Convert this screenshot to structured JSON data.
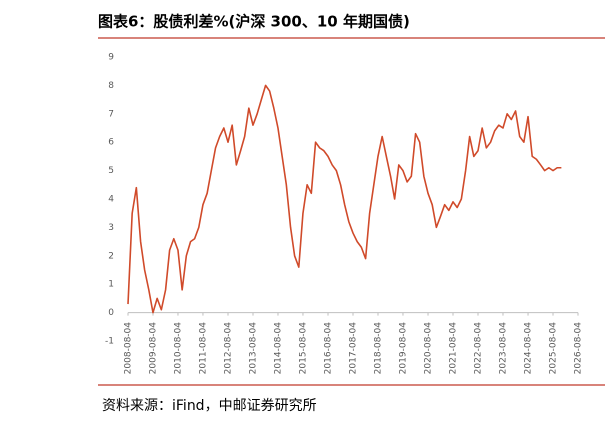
{
  "chart_data": {
    "type": "line",
    "title": "图表6：股债利差%(沪深 300、10 年期国债)",
    "source": "资料来源：iFind，中邮证券研究所",
    "x": [
      "2008-08-04",
      "2008-10-04",
      "2008-12-04",
      "2009-02-04",
      "2009-04-04",
      "2009-06-04",
      "2009-08-04",
      "2009-10-04",
      "2009-12-04",
      "2010-02-04",
      "2010-04-04",
      "2010-06-04",
      "2010-08-04",
      "2010-10-04",
      "2010-12-04",
      "2011-02-04",
      "2011-04-04",
      "2011-06-04",
      "2011-08-04",
      "2011-10-04",
      "2011-12-04",
      "2012-02-04",
      "2012-04-04",
      "2012-06-04",
      "2012-08-04",
      "2012-10-04",
      "2012-12-04",
      "2013-02-04",
      "2013-04-04",
      "2013-06-04",
      "2013-08-04",
      "2013-10-04",
      "2013-12-04",
      "2014-02-04",
      "2014-04-04",
      "2014-06-04",
      "2014-08-04",
      "2014-10-04",
      "2014-12-04",
      "2015-02-04",
      "2015-04-04",
      "2015-06-04",
      "2015-08-04",
      "2015-10-04",
      "2015-12-04",
      "2016-02-04",
      "2016-04-04",
      "2016-06-04",
      "2016-08-04",
      "2016-10-04",
      "2016-12-04",
      "2017-02-04",
      "2017-04-04",
      "2017-06-04",
      "2017-08-04",
      "2017-10-04",
      "2017-12-04",
      "2018-02-04",
      "2018-04-04",
      "2018-06-04",
      "2018-08-04",
      "2018-10-04",
      "2018-12-04",
      "2019-02-04",
      "2019-04-04",
      "2019-06-04",
      "2019-08-04",
      "2019-10-04",
      "2019-12-04",
      "2020-02-04",
      "2020-04-04",
      "2020-06-04",
      "2020-08-04",
      "2020-10-04",
      "2020-12-04",
      "2021-02-04",
      "2021-04-04",
      "2021-06-04",
      "2021-08-04",
      "2021-10-04",
      "2021-12-04",
      "2022-02-04",
      "2022-04-04",
      "2022-06-04",
      "2022-08-04",
      "2022-10-04",
      "2022-12-04",
      "2023-02-04",
      "2023-04-04",
      "2023-06-04",
      "2023-08-04",
      "2023-10-04",
      "2023-12-04",
      "2024-02-04",
      "2024-04-04",
      "2024-06-04",
      "2024-08-04",
      "2024-10-04",
      "2024-12-04",
      "2025-02-04",
      "2025-04-04",
      "2025-06-04",
      "2025-08-04",
      "2025-10-04",
      "2025-12-04"
    ],
    "series": [
      {
        "color": "#d04a2a",
        "values": [
          0.3,
          3.5,
          4.4,
          2.5,
          1.5,
          0.8,
          0.0,
          0.5,
          0.1,
          0.8,
          2.2,
          2.6,
          2.2,
          0.8,
          2.0,
          2.5,
          2.6,
          3.0,
          3.8,
          4.2,
          5.0,
          5.8,
          6.2,
          6.5,
          6.0,
          6.6,
          5.2,
          5.7,
          6.2,
          7.2,
          6.6,
          7.0,
          7.5,
          8.0,
          7.8,
          7.2,
          6.5,
          5.5,
          4.5,
          3.0,
          2.0,
          1.6,
          3.5,
          4.5,
          4.2,
          6.0,
          5.8,
          5.7,
          5.5,
          5.2,
          5.0,
          4.5,
          3.8,
          3.2,
          2.8,
          2.5,
          2.3,
          1.9,
          3.5,
          4.5,
          5.5,
          6.2,
          5.5,
          4.8,
          4.0,
          5.2,
          5.0,
          4.6,
          4.8,
          6.3,
          6.0,
          4.8,
          4.2,
          3.8,
          3.0,
          3.4,
          3.8,
          3.6,
          3.9,
          3.7,
          4.0,
          5.0,
          6.2,
          5.5,
          5.7,
          6.5,
          5.8,
          6.0,
          6.4,
          6.6,
          6.5,
          7.0,
          6.8,
          7.1,
          6.2,
          6.0,
          6.9,
          5.5,
          5.4,
          5.2,
          5.0,
          5.1,
          5.0,
          5.1,
          5.1
        ]
      }
    ],
    "xlim": [
      "2008-08-04",
      "2026-08-04"
    ],
    "xticks": [
      "2008-08-04",
      "2009-08-04",
      "2010-08-04",
      "2011-08-04",
      "2012-08-04",
      "2013-08-04",
      "2014-08-04",
      "2015-08-04",
      "2016-08-04",
      "2017-08-04",
      "2018-08-04",
      "2019-08-04",
      "2020-08-04",
      "2021-08-04",
      "2022-08-04",
      "2023-08-04",
      "2024-08-04",
      "2025-08-04",
      "2026-08-04"
    ],
    "ylim": [
      -1,
      9
    ],
    "yticks": [
      -1,
      0,
      1,
      2,
      3,
      4,
      5,
      6,
      7,
      8,
      9
    ],
    "grid": false
  }
}
